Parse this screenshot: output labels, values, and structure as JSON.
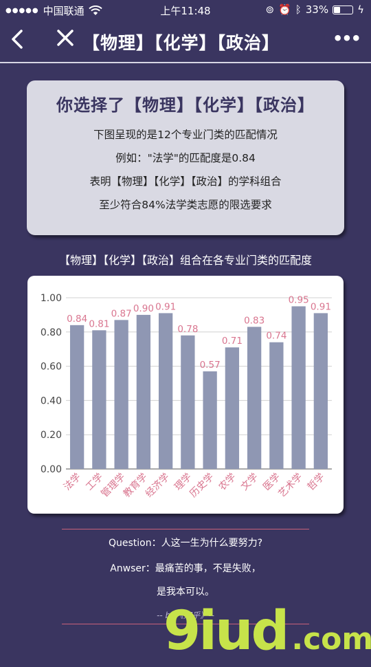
{
  "status_bar": {
    "carrier": "中国联通",
    "time": "上午11:48",
    "battery": "33%"
  },
  "nav": {
    "title": "【物理】【化学】【政治】",
    "more": "•••"
  },
  "info_card": {
    "heading": "你选择了【物理】【化学】【政治】",
    "lines": [
      "下图呈现的是12个专业门类的匹配情况",
      "例如：\"法学\"的匹配度是0.84",
      "表明【物理】【化学】【政治】的学科组合",
      "至少符合84%法学类志愿的限选要求"
    ]
  },
  "chart_caption": "【物理】【化学】【政治】组合在各专业门类的匹配度",
  "chart_data": {
    "type": "bar",
    "categories": [
      "法学",
      "工学",
      "管理学",
      "教育学",
      "经济学",
      "理学",
      "历史学",
      "农学",
      "文学",
      "医学",
      "艺术学",
      "哲学"
    ],
    "values": [
      0.84,
      0.81,
      0.87,
      0.9,
      0.91,
      0.78,
      0.57,
      0.71,
      0.83,
      0.74,
      0.95,
      0.91
    ],
    "value_labels": [
      "0.84",
      "0.81",
      "0.87",
      "0.90",
      "0.91",
      "0.78",
      "0.57",
      "0.71",
      "0.83",
      "0.74",
      "0.95",
      "0.91"
    ],
    "ylim": [
      0,
      1.0
    ],
    "yticks": [
      "0.00",
      "0.20",
      "0.40",
      "0.60",
      "0.80",
      "1.00"
    ],
    "ytick_values": [
      0,
      0.2,
      0.4,
      0.6,
      0.8,
      1.0
    ],
    "grid": true,
    "bar_color": "#8f97b3",
    "label_color": "#d9758f"
  },
  "quote": {
    "question": "Question：人这一生为什么要努力?",
    "answer_1": "Anwser：最痛苦的事，不是失败，",
    "answer_2": "是我本可以。",
    "byline": "-- by《知乎》--"
  },
  "watermark": {
    "main": "9iud",
    "suffix": ".com"
  }
}
